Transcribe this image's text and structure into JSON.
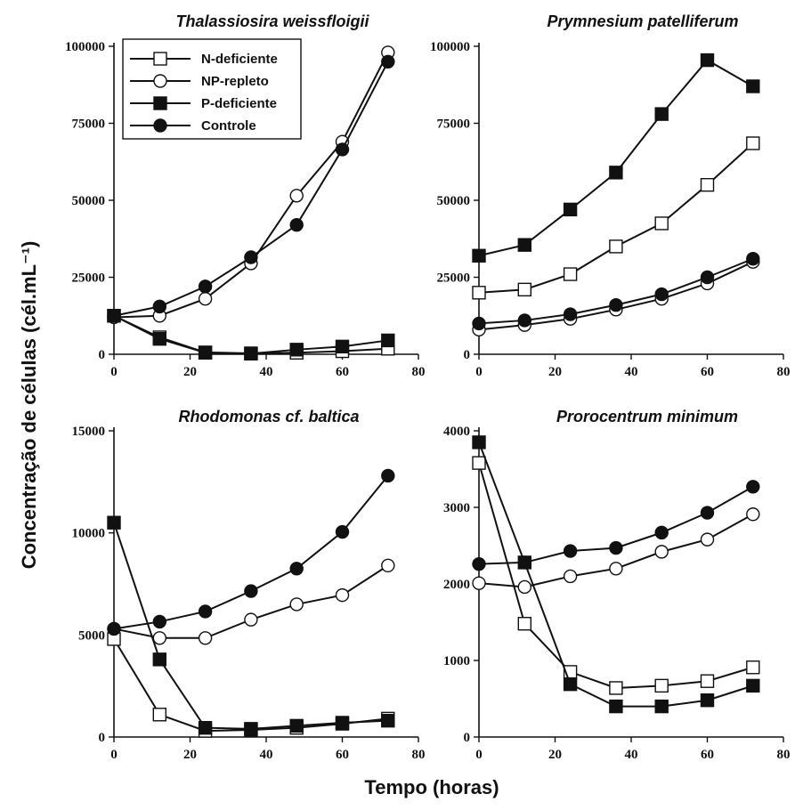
{
  "figure": {
    "ylabel": "Concentração de células (cél.mL⁻¹)",
    "xlabel": "Tempo (horas)"
  },
  "legend": {
    "entries": [
      {
        "label": "N-deficiente",
        "marker": "square",
        "fill": "open"
      },
      {
        "label": "NP-repleto",
        "marker": "circle",
        "fill": "open"
      },
      {
        "label": "P-deficiente",
        "marker": "square",
        "fill": "filled"
      },
      {
        "label": "Controle",
        "marker": "circle",
        "fill": "filled"
      }
    ]
  },
  "chart_data": [
    {
      "type": "line",
      "title": "Thalassiosira weissfloigii",
      "xlim": [
        0,
        80
      ],
      "ylim": [
        0,
        100000
      ],
      "xticks": [
        0,
        20,
        40,
        60,
        80
      ],
      "yticks": [
        0,
        25000,
        50000,
        75000,
        100000
      ],
      "x": [
        0,
        12,
        24,
        36,
        48,
        60,
        72
      ],
      "series": [
        {
          "name": "N-deficiente",
          "values": [
            12500,
            5500,
            600,
            300,
            500,
            1000,
            1800
          ]
        },
        {
          "name": "NP-repleto",
          "values": [
            12000,
            12500,
            18000,
            29500,
            51500,
            69000,
            98000
          ]
        },
        {
          "name": "P-deficiente",
          "values": [
            12500,
            5000,
            500,
            200,
            1500,
            2500,
            4500
          ]
        },
        {
          "name": "Controle",
          "values": [
            12500,
            15500,
            22000,
            31500,
            42000,
            66500,
            95000
          ]
        }
      ]
    },
    {
      "type": "line",
      "title": "Prymnesium patelliferum",
      "xlim": [
        0,
        80
      ],
      "ylim": [
        0,
        100000
      ],
      "xticks": [
        0,
        20,
        40,
        60,
        80
      ],
      "yticks": [
        0,
        25000,
        50000,
        75000,
        100000
      ],
      "x": [
        0,
        12,
        24,
        36,
        48,
        60,
        72
      ],
      "series": [
        {
          "name": "N-deficiente",
          "values": [
            20000,
            21000,
            26000,
            35000,
            42500,
            55000,
            68500
          ]
        },
        {
          "name": "NP-repleto",
          "values": [
            8000,
            9500,
            11500,
            14500,
            18000,
            23000,
            30000
          ]
        },
        {
          "name": "P-deficiente",
          "values": [
            32000,
            35500,
            47000,
            59000,
            78000,
            95500,
            87000
          ]
        },
        {
          "name": "Controle",
          "values": [
            10000,
            11000,
            13000,
            16000,
            19500,
            25000,
            31000
          ]
        }
      ]
    },
    {
      "type": "line",
      "title": "Rhodomonas cf. baltica",
      "xlim": [
        0,
        80
      ],
      "ylim": [
        0,
        15000
      ],
      "xticks": [
        0,
        20,
        40,
        60,
        80
      ],
      "yticks": [
        0,
        5000,
        10000,
        15000
      ],
      "x": [
        0,
        12,
        24,
        36,
        48,
        60,
        72
      ],
      "series": [
        {
          "name": "N-deficiente",
          "values": [
            4800,
            1100,
            300,
            350,
            450,
            650,
            900
          ]
        },
        {
          "name": "NP-repleto",
          "values": [
            5300,
            4850,
            4850,
            5750,
            6500,
            6950,
            8400
          ]
        },
        {
          "name": "P-deficiente",
          "values": [
            10500,
            3800,
            450,
            400,
            550,
            700,
            800
          ]
        },
        {
          "name": "Controle",
          "values": [
            5300,
            5650,
            6150,
            7150,
            8250,
            10050,
            12800
          ]
        }
      ]
    },
    {
      "type": "line",
      "title": "Prorocentrum minimum",
      "xlim": [
        0,
        80
      ],
      "ylim": [
        0,
        4000
      ],
      "xticks": [
        0,
        20,
        40,
        60,
        80
      ],
      "yticks": [
        0,
        1000,
        2000,
        3000,
        4000
      ],
      "x": [
        0,
        12,
        24,
        36,
        48,
        60,
        72
      ],
      "series": [
        {
          "name": "N-deficiente",
          "values": [
            3580,
            1480,
            850,
            640,
            670,
            730,
            910
          ]
        },
        {
          "name": "NP-repleto",
          "values": [
            2010,
            1960,
            2100,
            2200,
            2420,
            2580,
            2910
          ]
        },
        {
          "name": "P-deficiente",
          "values": [
            3850,
            2280,
            690,
            400,
            400,
            480,
            670
          ]
        },
        {
          "name": "Controle",
          "values": [
            2260,
            2280,
            2430,
            2470,
            2670,
            2930,
            3270
          ]
        }
      ]
    }
  ]
}
